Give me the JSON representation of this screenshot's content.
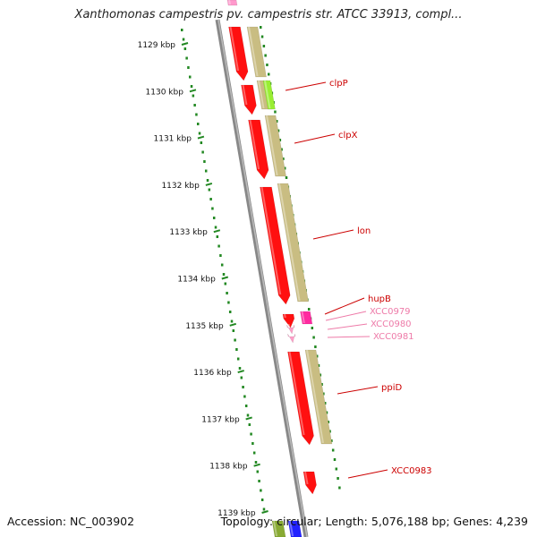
{
  "title": "Xanthomonas campestris pv. campestris str. ATCC 33913, compl...",
  "accession": "Accession: NC_003902",
  "topology": "Topology: circular; Length: 5,076,188 bp; Genes: 4,239",
  "ruler_labels": [
    "1129 kbp",
    "1130 kbp",
    "1131 kbp",
    "1132 kbp",
    "1133 kbp",
    "1134 kbp",
    "1135 kbp",
    "1136 kbp",
    "1137 kbp",
    "1138 kbp",
    "1139 kbp"
  ],
  "genes": [
    {
      "name": "clpP",
      "color": "#cc0000"
    },
    {
      "name": "clpX",
      "color": "#cc0000"
    },
    {
      "name": "lon",
      "color": "#cc0000"
    },
    {
      "name": "hupB",
      "color": "#cc0000"
    },
    {
      "name": "XCC0979",
      "color": "#ee7aa8"
    },
    {
      "name": "XCC0980",
      "color": "#ee7aa8"
    },
    {
      "name": "XCC0981",
      "color": "#ee7aa8"
    },
    {
      "name": "ppiD",
      "color": "#cc0000"
    },
    {
      "name": "XCC0983",
      "color": "#cc0000"
    }
  ],
  "colors": {
    "gene_red": "#ff1010",
    "gene_pink": "#ff2aa0",
    "gene_light_pink": "#ff9ec8",
    "cog_tan": "#c9bd82",
    "cog_green": "#99ee33",
    "cog_blue": "#2222ff",
    "ruler_green": "#228822",
    "backbone_gray": "#888888"
  }
}
